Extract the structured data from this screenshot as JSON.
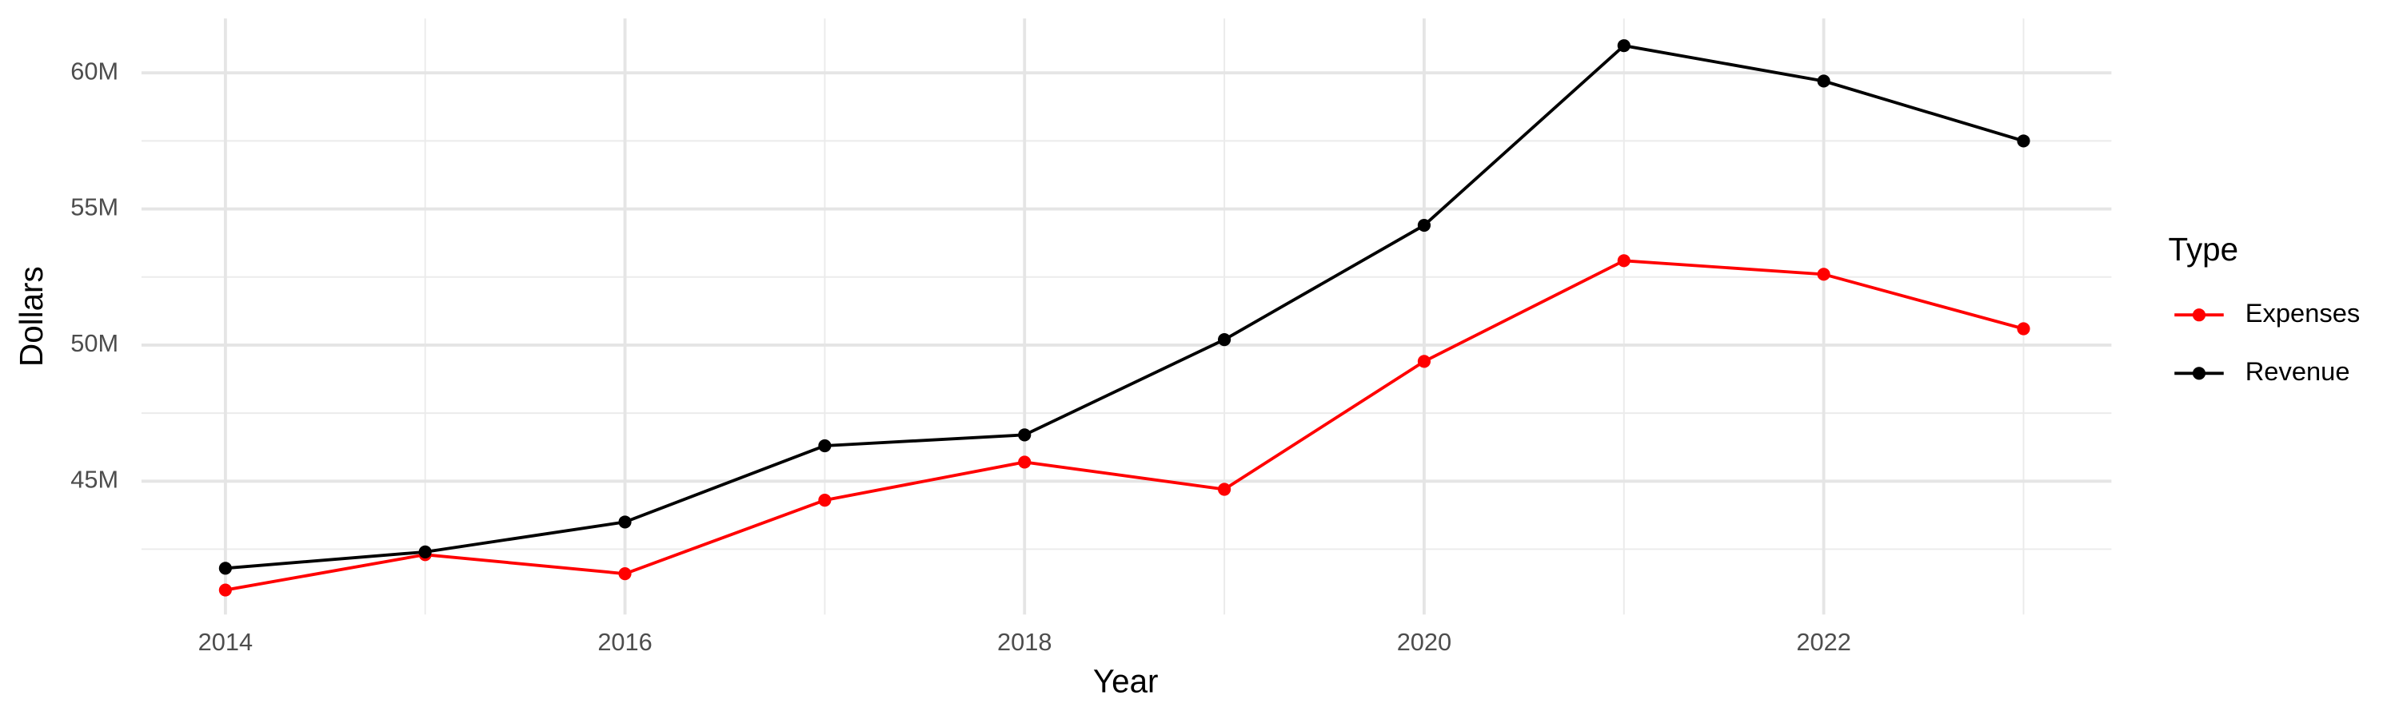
{
  "chart_data": {
    "type": "line",
    "x_label": "Year",
    "y_label": "Dollars",
    "legend_title": "Type",
    "x": [
      2014,
      2015,
      2016,
      2017,
      2018,
      2019,
      2020,
      2021,
      2022,
      2023
    ],
    "series": [
      {
        "name": "Expenses",
        "color": "#ff0000",
        "values": [
          41000000,
          42300000,
          41600000,
          44300000,
          45700000,
          44700000,
          49400000,
          53100000,
          52600000,
          50600000
        ]
      },
      {
        "name": "Revenue",
        "color": "#000000",
        "values": [
          41800000,
          42400000,
          43500000,
          46300000,
          46700000,
          50200000,
          54400000,
          61000000,
          59700000,
          57500000
        ]
      }
    ],
    "xlim": [
      2013.58,
      2023.44
    ],
    "xticks": [
      2014,
      2016,
      2018,
      2020,
      2022
    ],
    "ylim": [
      40100000,
      62000000
    ],
    "yticks": [
      {
        "value": 45000000,
        "label": "45M"
      },
      {
        "value": 50000000,
        "label": "50M"
      },
      {
        "value": 55000000,
        "label": "55M"
      },
      {
        "value": 60000000,
        "label": "60M"
      }
    ],
    "grid": true,
    "legend": "right"
  }
}
